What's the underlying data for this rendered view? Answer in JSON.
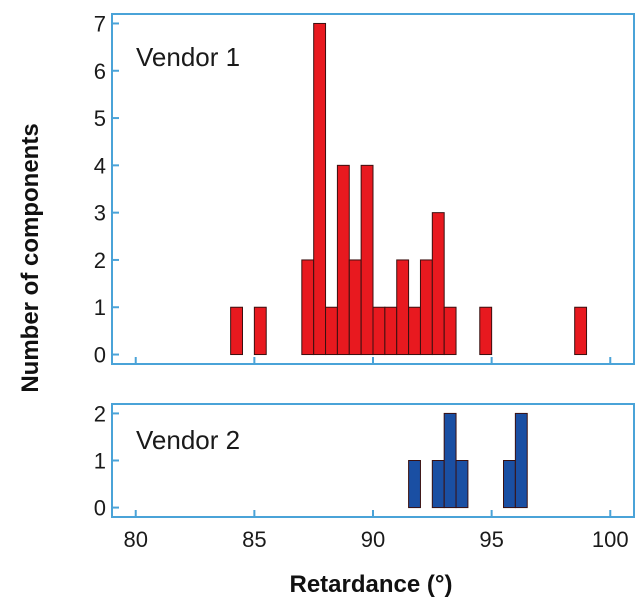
{
  "chart_data": [
    {
      "type": "bar",
      "panel": "top",
      "label": "Vendor 1",
      "color": "#e8191f",
      "bin_width": 0.5,
      "xlim": [
        79,
        101
      ],
      "ylim": [
        -0.2,
        7.2
      ],
      "x_ticks": [
        80,
        85,
        90,
        95,
        100
      ],
      "y_ticks": [
        0,
        1,
        2,
        3,
        4,
        5,
        6,
        7
      ],
      "bins": [
        {
          "x": 84.0,
          "value": 1
        },
        {
          "x": 85.0,
          "value": 1
        },
        {
          "x": 87.0,
          "value": 2
        },
        {
          "x": 87.5,
          "value": 7
        },
        {
          "x": 88.0,
          "value": 1
        },
        {
          "x": 88.5,
          "value": 4
        },
        {
          "x": 89.0,
          "value": 2
        },
        {
          "x": 89.5,
          "value": 4
        },
        {
          "x": 90.0,
          "value": 1
        },
        {
          "x": 90.5,
          "value": 1
        },
        {
          "x": 91.0,
          "value": 2
        },
        {
          "x": 91.5,
          "value": 1
        },
        {
          "x": 92.0,
          "value": 2
        },
        {
          "x": 92.5,
          "value": 3
        },
        {
          "x": 93.0,
          "value": 1
        },
        {
          "x": 94.5,
          "value": 1
        },
        {
          "x": 98.5,
          "value": 1
        }
      ]
    },
    {
      "type": "bar",
      "panel": "bottom",
      "label": "Vendor 2",
      "color": "#1a4fa3",
      "bin_width": 0.5,
      "xlim": [
        79,
        101
      ],
      "ylim": [
        -0.2,
        2.2
      ],
      "x_ticks": [
        80,
        85,
        90,
        95,
        100
      ],
      "y_ticks": [
        0,
        1,
        2
      ],
      "bins": [
        {
          "x": 91.5,
          "value": 1
        },
        {
          "x": 92.5,
          "value": 1
        },
        {
          "x": 93.0,
          "value": 2
        },
        {
          "x": 93.5,
          "value": 1
        },
        {
          "x": 95.5,
          "value": 1
        },
        {
          "x": 96.0,
          "value": 2
        }
      ]
    }
  ],
  "axes": {
    "xlabel": "Retardance (°)",
    "ylabel": "Number of components",
    "frame_color": "#4aa3d8"
  }
}
